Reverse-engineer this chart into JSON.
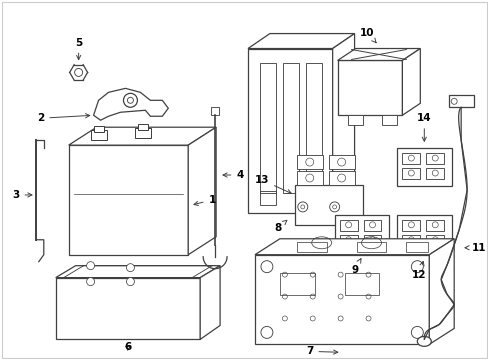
{
  "background_color": "#ffffff",
  "line_color": "#404040",
  "label_color": "#000000",
  "figsize": [
    4.89,
    3.6
  ],
  "dpi": 100,
  "border_color": "#cccccc"
}
